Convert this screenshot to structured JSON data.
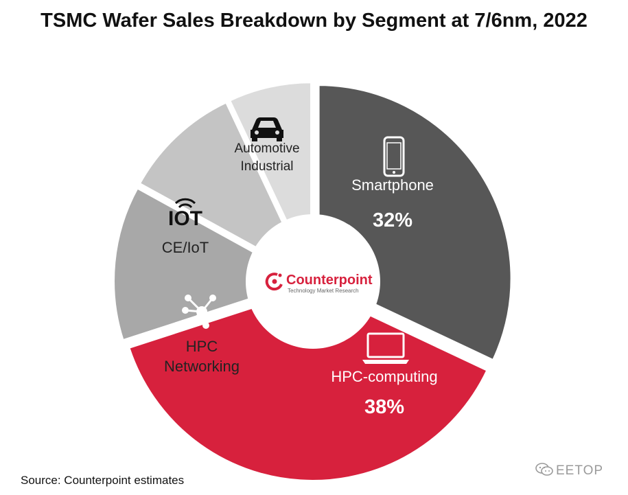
{
  "chart_data": {
    "type": "pie",
    "title": "TSMC Wafer Sales Breakdown by Segment at 7/6nm, 2022",
    "slices": [
      {
        "label": "Smartphone",
        "value": 32,
        "value_label": "32%",
        "color": "#575757",
        "text_color": "#ffffff",
        "icon": "smartphone-icon"
      },
      {
        "label": "HPC-computing",
        "value": 38,
        "value_label": "38%",
        "color": "#d7213d",
        "text_color": "#ffffff",
        "icon": "laptop-icon"
      },
      {
        "label": "HPC Networking",
        "value": 13,
        "value_label": "",
        "color": "#a8a8a8",
        "text_color": "#222222",
        "icon": "network-hub-icon"
      },
      {
        "label": "CE/IoT",
        "value": 10,
        "value_label": "",
        "color": "#c4c4c4",
        "text_color": "#222222",
        "icon": "iot-icon"
      },
      {
        "label": "Automotive Industrial",
        "value": 7,
        "value_label": "",
        "color": "#dcdcdc",
        "text_color": "#222222",
        "icon": "car-icon"
      }
    ],
    "start_angle_deg": 0,
    "direction": "clockwise",
    "hole": true
  },
  "center_logo": {
    "brand": "Counterpoint",
    "tagline": "Technology Market Research",
    "brand_color": "#d7213d",
    "icon": "counterpoint-logo-icon"
  },
  "footer": {
    "source": "Source: Counterpoint estimates",
    "watermark": "EETOP",
    "watermark_icon": "wechat-icon"
  }
}
